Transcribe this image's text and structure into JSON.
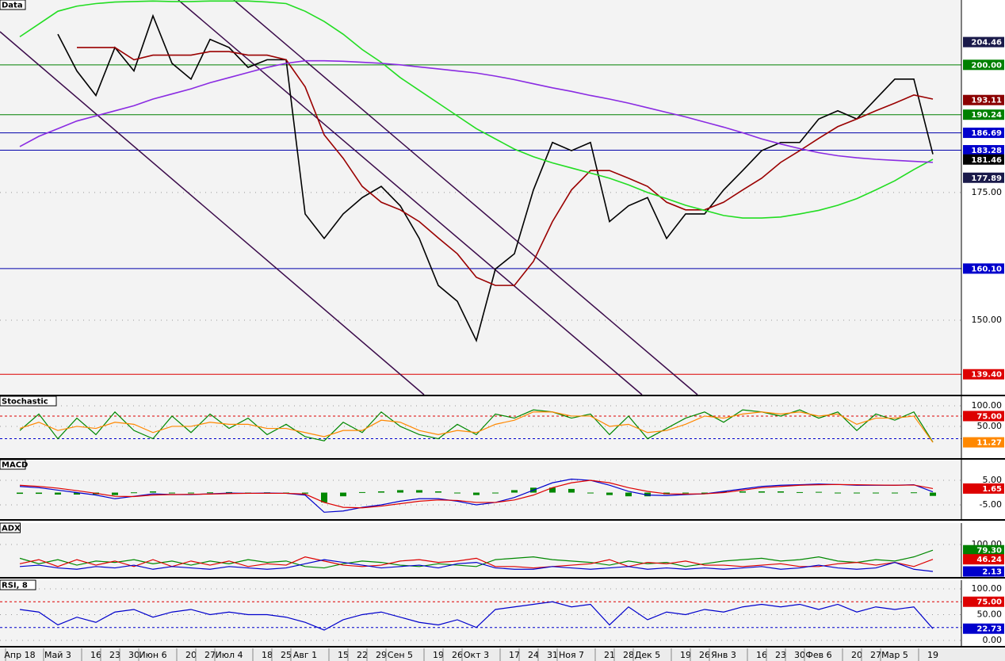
{
  "chart_data": [
    {
      "type": "line",
      "title": "Data",
      "categories": [
        "Апр 18",
        null,
        "Май 3",
        null,
        "16",
        "23",
        "30",
        "Июн 6",
        null,
        "20",
        "27",
        "Июл 4",
        null,
        "18",
        "25",
        "Авг 1",
        null,
        "15",
        "22",
        "29",
        "Сен 5",
        null,
        "19",
        "26",
        "Окт 3",
        null,
        "17",
        "24",
        "31",
        "Ноя 7",
        null,
        "21",
        "28",
        "Дек 5",
        null,
        "19",
        "26",
        "Янв 3",
        null,
        "16",
        "23",
        "30",
        "Фев 6",
        null,
        "20",
        "27",
        "Мар 5",
        null,
        "19"
      ],
      "ylim": [
        135.4,
        212.7
      ],
      "yticks": [
        {
          "value": 150,
          "label": "150.00"
        },
        {
          "value": 175,
          "label": "175.00"
        }
      ],
      "grid": true,
      "series": [
        {
          "color": "#000000",
          "values": [
            null,
            null,
            206,
            198.8,
            194,
            203.4,
            198.8,
            209.6,
            200.3,
            197.2,
            205,
            203.4,
            199.5,
            201,
            201,
            170.8,
            166,
            170.8,
            174,
            176.2,
            172.4,
            166,
            156.8,
            153.7,
            146,
            160,
            163,
            175.5,
            184.8,
            183.2,
            184.8,
            169.3,
            172.4,
            174,
            166,
            170.8,
            170.8,
            175.5,
            179.3,
            183.2,
            184.8,
            184.8,
            189.4,
            191,
            189.4,
            193.3,
            197.2,
            197.2,
            182.5
          ]
        },
        {
          "color": "#9a0000",
          "values": [
            null,
            null,
            null,
            203.4,
            203.4,
            203.4,
            201,
            201.9,
            201.9,
            201.9,
            202.6,
            202.6,
            201.9,
            201.9,
            201,
            195.7,
            186.3,
            181.7,
            176.2,
            173.1,
            171.6,
            169.3,
            166.1,
            163,
            158.4,
            156.8,
            156.8,
            161.5,
            169.3,
            175.5,
            179.3,
            179.3,
            177.8,
            176.2,
            173.1,
            171.6,
            171.6,
            173.1,
            175.5,
            177.8,
            180.9,
            183.2,
            185.6,
            187.9,
            189.4,
            191,
            192.5,
            194.1,
            193.3
          ]
        },
        {
          "color": "#22dd22",
          "values": [
            205.5,
            208,
            210.5,
            211.5,
            212,
            212.3,
            212.4,
            212.5,
            212.4,
            212.4,
            212.5,
            212.5,
            212.5,
            212.3,
            212,
            210.5,
            208.5,
            206,
            203,
            200.5,
            197.5,
            195,
            192.5,
            190,
            187.5,
            185.5,
            183.5,
            182,
            180.8,
            179.8,
            178.8,
            177.8,
            176.5,
            175,
            173.8,
            172.5,
            171.5,
            170.5,
            170,
            170,
            170.2,
            170.8,
            171.5,
            172.5,
            173.8,
            175.5,
            177.3,
            179.5,
            181.5
          ]
        },
        {
          "color": "#8a2be2",
          "values": [
            184,
            186,
            187.5,
            189,
            190,
            191,
            192,
            193.3,
            194.3,
            195.3,
            196.5,
            197.5,
            198.5,
            199.5,
            200.3,
            200.8,
            200.8,
            200.7,
            200.5,
            200.3,
            200,
            199.6,
            199.2,
            198.8,
            198.4,
            197.8,
            197.1,
            196.3,
            195.5,
            194.8,
            194,
            193.3,
            192.5,
            191.6,
            190.7,
            189.8,
            188.8,
            187.8,
            186.7,
            185.5,
            184.5,
            183.6,
            182.8,
            182.2,
            181.8,
            181.5,
            181.3,
            181.1,
            180.9
          ]
        }
      ],
      "levels": [
        {
          "value": 200,
          "color": "#008000"
        },
        {
          "value": 190.24,
          "color": "#008000"
        },
        {
          "value": 186.69,
          "color": "#0000aa"
        },
        {
          "value": 183.28,
          "color": "#0000aa"
        },
        {
          "value": 160.1,
          "color": "#0000aa"
        },
        {
          "value": 139.4,
          "color": "#dd0000"
        }
      ],
      "tags": [
        {
          "value": 204.46,
          "color": "#1a1a4a"
        },
        {
          "value": 200,
          "label": "200.00",
          "color": "#008000"
        },
        {
          "value": 193.11,
          "color": "#8b0000"
        },
        {
          "value": 190.24,
          "color": "#008000"
        },
        {
          "value": 186.69,
          "color": "#0000cc"
        },
        {
          "value": 183.28,
          "color": "#0000cc"
        },
        {
          "value": 181.46,
          "color": "#000000"
        },
        {
          "value": 177.89,
          "color": "#1a1a4a"
        },
        {
          "value": 160.1,
          "label": "160.10",
          "color": "#0000cc"
        },
        {
          "value": 139.4,
          "label": "139.40",
          "color": "#dd0000"
        }
      ]
    },
    {
      "type": "line",
      "title": "Stochastic",
      "ylim": [
        -27,
        123
      ],
      "yticks": [
        {
          "value": 100,
          "label": "100.00"
        },
        {
          "value": 50,
          "label": "50.00"
        }
      ],
      "grid": true,
      "series": [
        {
          "color": "#008800",
          "values": [
            40,
            80,
            20,
            70,
            30,
            85,
            40,
            20,
            75,
            35,
            80,
            45,
            70,
            30,
            55,
            25,
            15,
            60,
            35,
            85,
            50,
            30,
            20,
            55,
            30,
            80,
            70,
            90,
            85,
            70,
            80,
            30,
            75,
            20,
            45,
            70,
            85,
            60,
            90,
            85,
            75,
            90,
            70,
            85,
            40,
            80,
            65,
            85,
            12
          ]
        },
        {
          "color": "#ff8800",
          "values": [
            45,
            60,
            40,
            50,
            45,
            60,
            55,
            35,
            50,
            50,
            60,
            55,
            55,
            45,
            45,
            35,
            25,
            40,
            40,
            65,
            60,
            40,
            30,
            40,
            35,
            55,
            65,
            85,
            85,
            75,
            75,
            50,
            55,
            35,
            40,
            55,
            75,
            70,
            80,
            85,
            80,
            85,
            75,
            80,
            55,
            70,
            70,
            75,
            11.27
          ]
        }
      ],
      "levels": [
        {
          "value": 75,
          "color": "#dd0000",
          "dashed": true
        },
        {
          "value": 20,
          "color": "#0000cc",
          "dashed": true
        }
      ],
      "tags": [
        {
          "value": 75,
          "label": "75.00",
          "color": "#dd0000"
        },
        {
          "value": 11.27,
          "color": "#ff8800"
        }
      ]
    },
    {
      "type": "line",
      "title": "MACD",
      "ylim": [
        -10.8,
        13.4
      ],
      "yticks": [
        {
          "value": 5,
          "label": "5.00"
        },
        {
          "value": -5,
          "label": "-5.00"
        }
      ],
      "grid": true,
      "series": [
        {
          "type": "bar",
          "color": "#008800",
          "values": [
            -0.5,
            -0.5,
            -0.8,
            -0.8,
            -0.7,
            -1,
            0.1,
            0.5,
            0,
            -0.1,
            0.1,
            0.2,
            0,
            0.1,
            0,
            -0.4,
            -4,
            -1.5,
            0.2,
            0.5,
            1,
            1,
            0.5,
            -0.3,
            -1,
            0,
            1,
            2,
            2,
            1.5,
            0,
            -1,
            -1.5,
            -1.5,
            -0.7,
            -0.2,
            0,
            0.5,
            0.5,
            0.5,
            0.5,
            0.2,
            0.3,
            0,
            -0.2,
            -0.1,
            0,
            0.1,
            -1.35
          ]
        },
        {
          "color": "#0000cc",
          "values": [
            2.5,
            2,
            1,
            0,
            -1,
            -2.5,
            -1.5,
            -0.5,
            -0.8,
            -0.8,
            -0.5,
            -0.2,
            -0.3,
            -0.2,
            -0.3,
            -1,
            -8,
            -7.5,
            -6,
            -5,
            -3.5,
            -2.5,
            -2.5,
            -3.5,
            -5,
            -4,
            -2,
            1,
            4,
            5.5,
            5,
            3,
            0.5,
            -1,
            -1.2,
            -0.8,
            -0.5,
            0.5,
            1.5,
            2.5,
            3,
            3.2,
            3.5,
            3.3,
            3,
            3,
            3,
            3.2,
            0.3
          ]
        },
        {
          "color": "#dd0000",
          "values": [
            3,
            2.5,
            1.8,
            0.8,
            -0.3,
            -1.5,
            -1.6,
            -1,
            -0.8,
            -0.7,
            -0.6,
            -0.4,
            -0.3,
            -0.3,
            -0.3,
            -0.6,
            -4,
            -6,
            -6.2,
            -5.5,
            -4.5,
            -3.5,
            -3,
            -3.2,
            -4,
            -4,
            -3,
            -1,
            2,
            4,
            5,
            4,
            2,
            0.5,
            -0.5,
            -0.6,
            -0.5,
            0,
            1,
            2,
            2.5,
            3,
            3.2,
            3.3,
            3.2,
            3.1,
            3,
            3.1,
            1.65
          ]
        }
      ],
      "tags": [
        {
          "value": 1.65,
          "color": "#dd0000"
        }
      ]
    },
    {
      "type": "line",
      "title": "ADX",
      "ylim": [
        -18,
        177.8
      ],
      "yticks": [
        {
          "value": 100,
          "label": "100.00"
        }
      ],
      "grid": true,
      "series": [
        {
          "color": "#008800",
          "values": [
            50,
            30,
            45,
            25,
            40,
            35,
            45,
            30,
            40,
            25,
            40,
            30,
            45,
            35,
            40,
            20,
            15,
            30,
            40,
            35,
            25,
            20,
            30,
            25,
            20,
            45,
            50,
            55,
            45,
            40,
            35,
            25,
            40,
            30,
            35,
            20,
            30,
            40,
            45,
            50,
            40,
            45,
            55,
            40,
            35,
            45,
            40,
            55,
            79.3
          ]
        },
        {
          "color": "#dd0000",
          "values": [
            30,
            45,
            20,
            45,
            25,
            40,
            20,
            45,
            20,
            40,
            25,
            40,
            20,
            30,
            25,
            55,
            40,
            25,
            20,
            25,
            40,
            45,
            35,
            40,
            50,
            20,
            20,
            15,
            20,
            25,
            30,
            45,
            20,
            35,
            30,
            40,
            25,
            25,
            20,
            25,
            30,
            20,
            20,
            30,
            35,
            25,
            35,
            20,
            46.24
          ]
        },
        {
          "color": "#0000cc",
          "values": [
            20,
            25,
            15,
            10,
            20,
            15,
            25,
            10,
            20,
            15,
            10,
            20,
            15,
            10,
            15,
            30,
            45,
            35,
            25,
            15,
            20,
            25,
            15,
            30,
            35,
            15,
            10,
            10,
            20,
            15,
            10,
            15,
            20,
            10,
            15,
            10,
            15,
            10,
            15,
            20,
            10,
            15,
            25,
            15,
            10,
            15,
            35,
            10,
            2.13
          ]
        }
      ],
      "tags": [
        {
          "value": 79.3,
          "label": "79.30",
          "color": "#008000"
        },
        {
          "value": 46.24,
          "color": "#dd0000"
        },
        {
          "value": 2.13,
          "color": "#0000cc"
        }
      ]
    },
    {
      "type": "line",
      "title": "RSI, 8",
      "ylim": [
        -10.8,
        116.9
      ],
      "yticks": [
        {
          "value": 100,
          "label": "100.00"
        },
        {
          "value": 50,
          "label": "50.00"
        },
        {
          "value": 0,
          "label": "0.00"
        }
      ],
      "grid": true,
      "series": [
        {
          "color": "#0000cc",
          "values": [
            60,
            55,
            30,
            45,
            35,
            55,
            60,
            45,
            55,
            60,
            50,
            55,
            50,
            50,
            45,
            35,
            20,
            40,
            50,
            55,
            45,
            35,
            30,
            40,
            25,
            60,
            65,
            70,
            75,
            65,
            70,
            30,
            65,
            40,
            55,
            50,
            60,
            55,
            65,
            70,
            65,
            70,
            60,
            70,
            55,
            65,
            60,
            65,
            22.73
          ]
        }
      ],
      "levels": [
        {
          "value": 75,
          "color": "#dd0000",
          "dashed": true
        },
        {
          "value": 25,
          "color": "#0000cc",
          "dashed": true
        }
      ],
      "tags": [
        {
          "value": 75,
          "label": "75.00",
          "color": "#dd0000"
        },
        {
          "value": 22.73,
          "color": "#0000cc"
        }
      ]
    }
  ]
}
